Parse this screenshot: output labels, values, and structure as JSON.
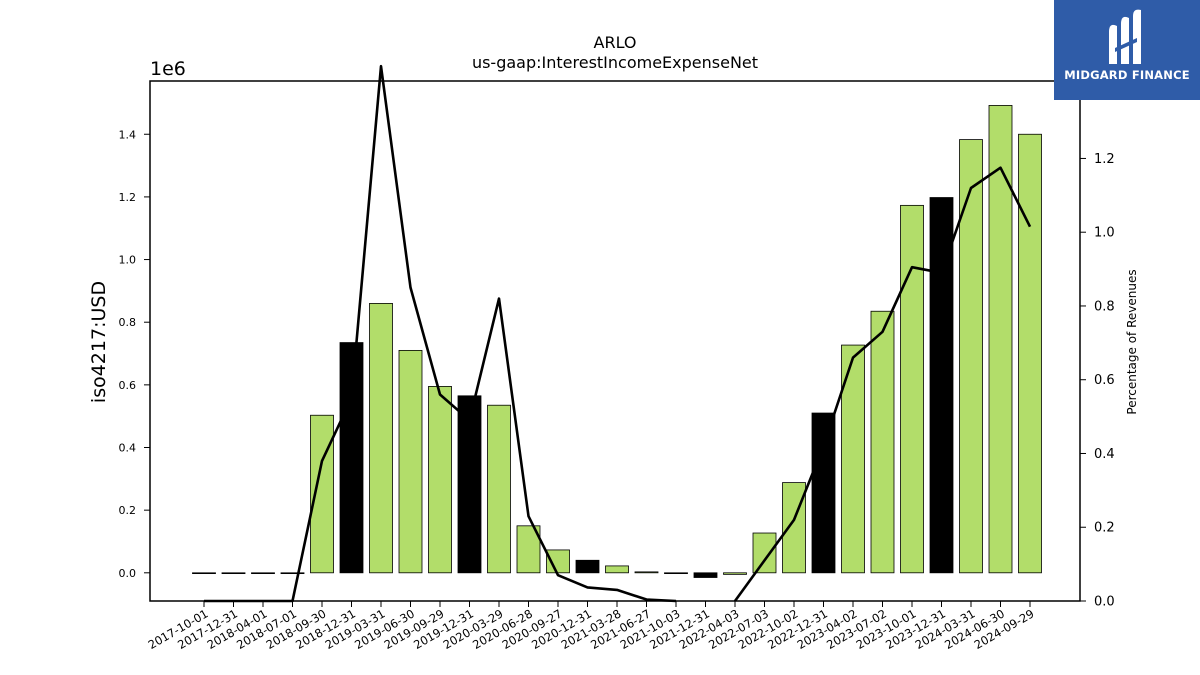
{
  "chart_data": {
    "type": "bar",
    "title": "ARLO",
    "subtitle": "us-gaap:InterestIncomeExpenseNet",
    "ylabel": "iso4217:USD",
    "y_scale_label": "1e6",
    "y2label": "Percentage of Revenues",
    "categories": [
      "2017-10-01",
      "2017-12-31",
      "2018-04-01",
      "2018-07-01",
      "2018-09-30",
      "2018-12-31",
      "2019-03-31",
      "2019-06-30",
      "2019-09-29",
      "2019-12-31",
      "2020-03-29",
      "2020-06-28",
      "2020-09-27",
      "2020-12-31",
      "2021-03-28",
      "2021-06-27",
      "2021-10-03",
      "2021-12-31",
      "2022-04-03",
      "2022-07-03",
      "2022-10-02",
      "2022-12-31",
      "2023-04-02",
      "2023-07-02",
      "2023-10-01",
      "2023-12-31",
      "2024-03-31",
      "2024-06-30",
      "2024-09-29"
    ],
    "series": [
      {
        "type": "bar",
        "values": [
          0,
          0,
          0,
          0,
          503000,
          735000,
          860000,
          710000,
          595000,
          565000,
          535000,
          150000,
          73000,
          40000,
          22000,
          3000,
          -2000,
          -15000,
          -5000,
          127000,
          288000,
          510000,
          727000,
          835000,
          1173000,
          1198000,
          1383000,
          1492000,
          1400000
        ]
      },
      {
        "type": "line",
        "axis": "right",
        "values": [
          0,
          0,
          0,
          0,
          0.38,
          0.55,
          1.45,
          0.85,
          0.56,
          0.49,
          0.82,
          0.23,
          0.07,
          0.037,
          0.03,
          0.004,
          0,
          null,
          0,
          0.11,
          0.22,
          0.42,
          0.66,
          0.73,
          0.905,
          0.89,
          1.12,
          1.175,
          1.015
        ]
      }
    ],
    "bar_colors": [
      "#b2dd6a",
      "#b2dd6a",
      "#b2dd6a",
      "#b2dd6a",
      "#b2dd6a",
      "#000000",
      "#b2dd6a",
      "#b2dd6a",
      "#b2dd6a",
      "#000000",
      "#b2dd6a",
      "#b2dd6a",
      "#b2dd6a",
      "#000000",
      "#b2dd6a",
      "#b2dd6a",
      "#b2dd6a",
      "#000000",
      "#b2dd6a",
      "#b2dd6a",
      "#b2dd6a",
      "#000000",
      "#b2dd6a",
      "#b2dd6a",
      "#b2dd6a",
      "#000000",
      "#b2dd6a",
      "#b2dd6a",
      "#b2dd6a"
    ],
    "ylim": [
      -90000,
      1570000
    ],
    "y2lim": [
      0,
      1.41
    ],
    "yticks": [
      0,
      200000,
      400000,
      600000,
      800000,
      1000000,
      1200000,
      1400000
    ],
    "ytick_labels": [
      "0.0",
      "0.2",
      "0.4",
      "0.6",
      "0.8",
      "1.0",
      "1.2",
      "1.4"
    ],
    "y2ticks": [
      0,
      0.2,
      0.4,
      0.6,
      0.8,
      1.0,
      1.2
    ],
    "y2tick_labels": [
      "0.0",
      "0.2",
      "0.4",
      "0.6",
      "0.8",
      "1.0",
      "1.2"
    ],
    "grid": false
  },
  "logo": {
    "text": "MIDGARD FINANCE",
    "color": "#2f5ca8"
  }
}
